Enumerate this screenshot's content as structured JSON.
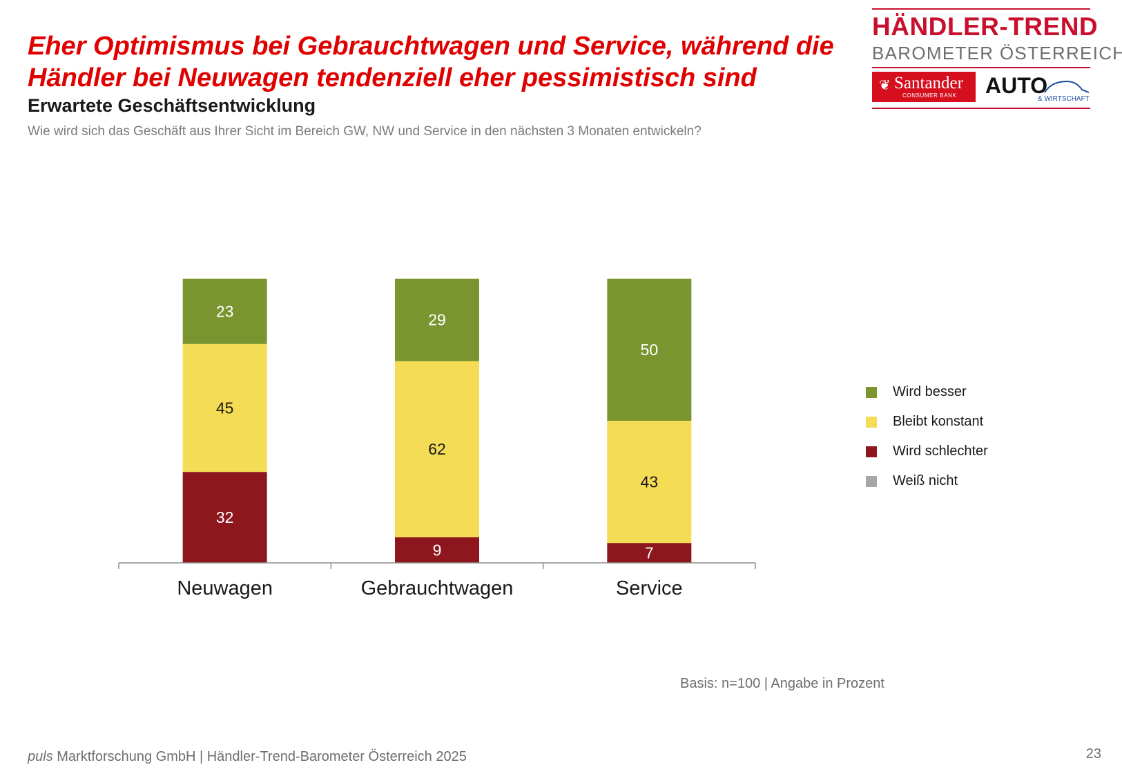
{
  "header": {
    "title_line1": "Eher Optimismus bei Gebrauchtwagen und Service, während die",
    "title_line2": "Händler bei Neuwagen tendenziell eher pessimistisch sind",
    "subtitle": "Erwartete Geschäftsentwicklung",
    "question": "Wie wird sich das Geschäft aus Ihrer Sicht im Bereich GW, NW und Service in den nächsten 3 Monaten entwickeln?"
  },
  "logo": {
    "brand_line1": "HÄNDLER-TREND",
    "brand_line2": "BAROMETER ÖSTERREICH",
    "sponsor1": "Santander",
    "sponsor1_sub": "CONSUMER BANK",
    "sponsor2": "AUTO",
    "sponsor2_sub": "& WIRTSCHAFT"
  },
  "chart_data": {
    "type": "bar",
    "stacked": true,
    "categories": [
      "Neuwagen",
      "Gebrauchtwagen",
      "Service"
    ],
    "series": [
      {
        "name": "Wird schlechter",
        "color": "#8e161d",
        "label_color": "#ffffff",
        "values": [
          32,
          9,
          7
        ]
      },
      {
        "name": "Bleibt konstant",
        "color": "#f5dc55",
        "label_color": "#1a1a1a",
        "values": [
          45,
          62,
          43
        ]
      },
      {
        "name": "Wird besser",
        "color": "#7a9430",
        "label_color": "#ffffff",
        "values": [
          23,
          29,
          50
        ]
      },
      {
        "name": "Weiß nicht",
        "color": "#a6a6a6",
        "label_color": "#1a1a1a",
        "values": [
          0,
          0,
          0
        ]
      }
    ],
    "legend_order": [
      "Wird besser",
      "Bleibt konstant",
      "Wird schlechter",
      "Weiß nicht"
    ],
    "legend_position": "right",
    "ylim": [
      0,
      100
    ],
    "grid": false
  },
  "notes": {
    "basis": "Basis: n=100 | Angabe in Prozent"
  },
  "footer": {
    "company_italic": "puls",
    "company_rest": " Marktforschung GmbH | Händler-Trend-Barometer Österreich 2025",
    "page_number": "23"
  }
}
